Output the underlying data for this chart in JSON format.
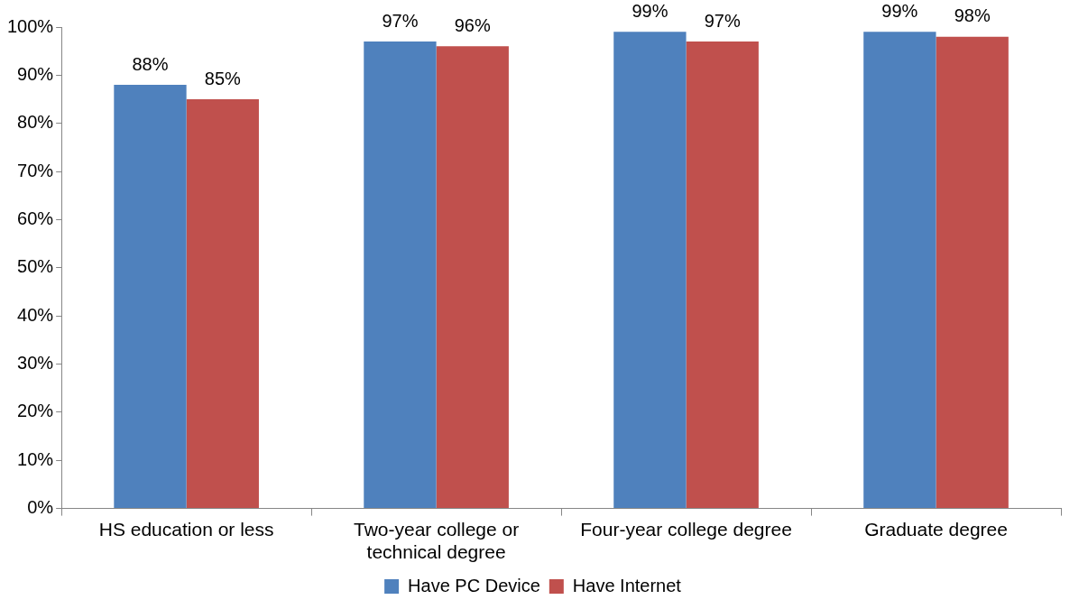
{
  "chart_data": {
    "type": "bar",
    "categories": [
      "HS education or less",
      "Two-year college or technical degree",
      "Four-year college degree",
      "Graduate degree"
    ],
    "series": [
      {
        "name": "Have PC Device",
        "color": "#4f81bd",
        "values": [
          88,
          97,
          99,
          99
        ],
        "value_labels": [
          "88%",
          "97%",
          "99%",
          "99%"
        ]
      },
      {
        "name": "Have Internet",
        "color": "#c0504d",
        "values": [
          85,
          96,
          97,
          98
        ],
        "value_labels": [
          "85%",
          "96%",
          "97%",
          "98%"
        ]
      }
    ],
    "ylim": [
      0,
      100
    ],
    "yticks": [
      {
        "value": 0,
        "label": "0%"
      },
      {
        "value": 10,
        "label": "10%"
      },
      {
        "value": 20,
        "label": "20%"
      },
      {
        "value": 30,
        "label": "30%"
      },
      {
        "value": 40,
        "label": "40%"
      },
      {
        "value": 50,
        "label": "50%"
      },
      {
        "value": 60,
        "label": "60%"
      },
      {
        "value": 70,
        "label": "70%"
      },
      {
        "value": 80,
        "label": "80%"
      },
      {
        "value": 90,
        "label": "90%"
      },
      {
        "value": 100,
        "label": "100%"
      }
    ],
    "legend": "bottom"
  }
}
